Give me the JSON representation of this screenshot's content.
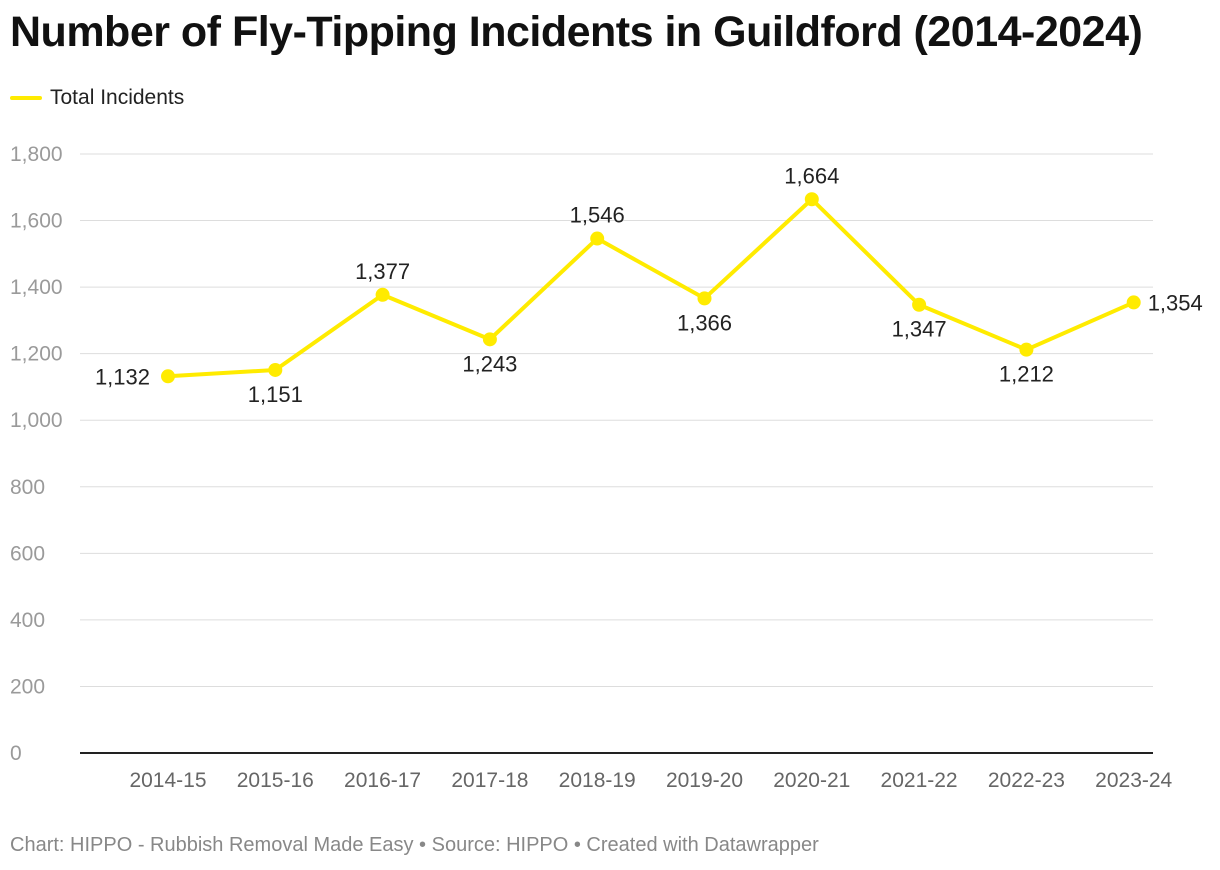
{
  "chart_data": {
    "type": "line",
    "title": "Number of Fly-Tipping Incidents in Guildford (2014-2024)",
    "categories": [
      "2014-15",
      "2015-16",
      "2016-17",
      "2017-18",
      "2018-19",
      "2019-20",
      "2020-21",
      "2021-22",
      "2022-23",
      "2023-24"
    ],
    "series": [
      {
        "name": "Total Incidents",
        "values": [
          1132,
          1151,
          1377,
          1243,
          1546,
          1366,
          1664,
          1347,
          1212,
          1354
        ],
        "labels": [
          "1,132",
          "1,151",
          "1,377",
          "1,243",
          "1,546",
          "1,366",
          "1,664",
          "1,347",
          "1,212",
          "1,354"
        ],
        "label_positions": [
          "left",
          "below",
          "above",
          "below",
          "above",
          "below",
          "above",
          "below",
          "below",
          "right"
        ]
      }
    ],
    "ylim": [
      0,
      1800
    ],
    "yticks": [
      0,
      200,
      400,
      600,
      800,
      1000,
      1200,
      1400,
      1600,
      1800
    ],
    "ytick_labels": [
      "0",
      "200",
      "400",
      "600",
      "800",
      "1,000",
      "1,200",
      "1,400",
      "1,600",
      "1,800"
    ],
    "xlabel": "",
    "ylabel": "",
    "grid": true,
    "legend_position": "top-left"
  },
  "colors": {
    "line": "#ffeb00",
    "grid": "#dddddd",
    "axis": "#222222"
  },
  "footer": {
    "text": "Chart: HIPPO - Rubbish Removal Made Easy • Source: HIPPO • Created with Datawrapper"
  }
}
